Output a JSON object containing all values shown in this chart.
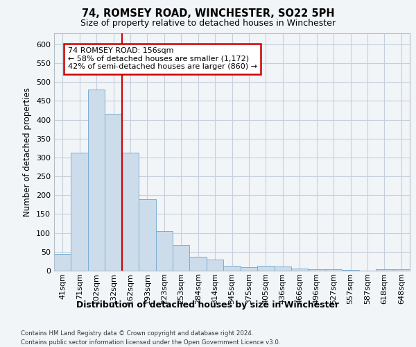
{
  "title1": "74, ROMSEY ROAD, WINCHESTER, SO22 5PH",
  "title2": "Size of property relative to detached houses in Winchester",
  "xlabel": "Distribution of detached houses by size in Winchester",
  "ylabel": "Number of detached properties",
  "categories": [
    "41sqm",
    "71sqm",
    "102sqm",
    "132sqm",
    "162sqm",
    "193sqm",
    "223sqm",
    "253sqm",
    "284sqm",
    "314sqm",
    "345sqm",
    "375sqm",
    "405sqm",
    "436sqm",
    "466sqm",
    "496sqm",
    "527sqm",
    "557sqm",
    "587sqm",
    "618sqm",
    "648sqm"
  ],
  "values": [
    45,
    312,
    480,
    415,
    313,
    190,
    104,
    68,
    37,
    30,
    13,
    10,
    13,
    11,
    6,
    4,
    3,
    1,
    0,
    4,
    3
  ],
  "bar_color": "#ccdcea",
  "bar_edge_color": "#7aaed4",
  "vline_color": "#cc0000",
  "annotation_text": "74 ROMSEY ROAD: 156sqm\n← 58% of detached houses are smaller (1,172)\n42% of semi-detached houses are larger (860) →",
  "annotation_box_color": "#ffffff",
  "annotation_box_edge_color": "#cc0000",
  "ylim": [
    0,
    630
  ],
  "yticks": [
    0,
    50,
    100,
    150,
    200,
    250,
    300,
    350,
    400,
    450,
    500,
    550,
    600
  ],
  "footer1": "Contains HM Land Registry data © Crown copyright and database right 2024.",
  "footer2": "Contains public sector information licensed under the Open Government Licence v3.0.",
  "bg_color": "#f2f5f8",
  "plot_bg_color": "#f2f5f8",
  "grid_color": "#c5d0dc"
}
